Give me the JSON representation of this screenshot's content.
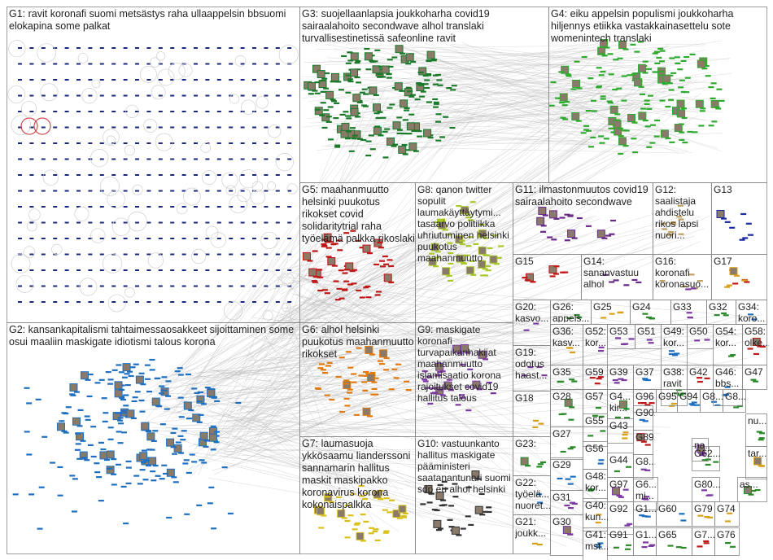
{
  "colors": {
    "frame": "#888888",
    "edge": "#b4b4b4",
    "g1": "#1a2a7a",
    "g2": "#1e6fc0",
    "g3": "#1a7a2a",
    "g4": "#2eaa2e",
    "g5": "#c01818",
    "g6": "#e07a10",
    "g7": "#d8c018",
    "g8": "#a8c82a",
    "g9": "#7a3aa0",
    "g10": "#333333",
    "g11": "#6a2a8a",
    "g12": "#c0a060",
    "g13": "#1a2aa0",
    "misc": "#4a8a4a"
  },
  "groups": [
    {
      "id": "G1",
      "label": "G1: ravit koronafi suomi metsästys raha ullaappelsin bbsuomi elokapina some palkat"
    },
    {
      "id": "G2",
      "label": "G2: kansankapitalismi tahtaimessaosakkeet sijoittaminen some osui maaliin maskigate idiotismi talous korona"
    },
    {
      "id": "G3",
      "label": "G3: suojellaanlapsia joukkoharha covid19 sairaalahoito secondwave alhol translaki turvallisestinetissä safeonline ravit"
    },
    {
      "id": "G4",
      "label": "G4: eiku appelsin populismi joukkoharha hiljennys etiikka vastakkainasettelu sote womenintech translaki"
    },
    {
      "id": "G5",
      "label": "G5: maahanmuutto helsinki puukotus rikokset covid solidaritytrial raha työelämä palkka rikoslaki"
    },
    {
      "id": "G8",
      "label": "G8: qanon twitter sopulit laumakäyttäytymi... tasaarvo politiikka uhriutuminen helsinki puukotus maahanmuutto"
    },
    {
      "id": "G11",
      "label": "G11: ilmastonmuutos covid19 sairaalahoito secondwave"
    },
    {
      "id": "G12",
      "label": "G12: saalistaja ahdistelu rikos lapsi nuori..."
    },
    {
      "id": "G13",
      "label": "G13"
    },
    {
      "id": "G15",
      "label": "G15"
    },
    {
      "id": "G14",
      "label": "G14: sananvastuu alhol"
    },
    {
      "id": "G16",
      "label": "G16: koronafi koronasuo..."
    },
    {
      "id": "G17",
      "label": "G17"
    },
    {
      "id": "G6",
      "label": "G6: alhol helsinki puukotus maahanmuutto rikokset"
    },
    {
      "id": "G9",
      "label": "G9: maskigate koronafi turvapaikanhakijat maahanmuutto islamisaatio korona rajoitukset covid19 hallitus talous"
    },
    {
      "id": "G20",
      "label": "G20: kasvo..."
    },
    {
      "id": "G26",
      "label": "G26: appels..."
    },
    {
      "id": "G25",
      "label": "G25"
    },
    {
      "id": "G24",
      "label": "G24"
    },
    {
      "id": "G33",
      "label": "G33"
    },
    {
      "id": "G32",
      "label": "G32"
    },
    {
      "id": "G34",
      "label": "G34: koro..."
    },
    {
      "id": "G19",
      "label": "G19: odotus haast..."
    },
    {
      "id": "G36",
      "label": "G36: kasv..."
    },
    {
      "id": "G52",
      "label": "G52: kor..."
    },
    {
      "id": "G53",
      "label": "G53"
    },
    {
      "id": "G51",
      "label": "G51"
    },
    {
      "id": "G49",
      "label": "G49: kor..."
    },
    {
      "id": "G50",
      "label": "G50"
    },
    {
      "id": "G54",
      "label": "G54: kor..."
    },
    {
      "id": "G58",
      "label": "G58: olke..."
    },
    {
      "id": "G35",
      "label": "G35"
    },
    {
      "id": "G59",
      "label": "G59"
    },
    {
      "id": "G39",
      "label": "G39"
    },
    {
      "id": "G37",
      "label": "G37"
    },
    {
      "id": "G38",
      "label": "G38: ravit"
    },
    {
      "id": "G42",
      "label": "G42"
    },
    {
      "id": "G46",
      "label": "G46: bbs..."
    },
    {
      "id": "G47",
      "label": "G47"
    },
    {
      "id": "G18",
      "label": "G18"
    },
    {
      "id": "G28",
      "label": "G28"
    },
    {
      "id": "G57",
      "label": "G57"
    },
    {
      "id": "G4x",
      "label": "G4... kir..."
    },
    {
      "id": "G96",
      "label": "G96"
    },
    {
      "id": "G95",
      "label": "G95"
    },
    {
      "id": "G94",
      "label": "G94"
    },
    {
      "id": "G8a",
      "label": "G8..."
    },
    {
      "id": "G8b",
      "label": "G8..."
    },
    {
      "id": "G7",
      "label": "G7: laumasuoja ykkösaamu lianderssoni sannamarin hallitus maskit maskipakko koronavirus korona kokonaispalkka"
    },
    {
      "id": "G10",
      "label": "G10: vastuunkanto hallitus maskigate pääministeri saatanantunari suomi sdp eu alhol helsinki"
    },
    {
      "id": "G23",
      "label": "G23:"
    },
    {
      "id": "G27",
      "label": "G27"
    },
    {
      "id": "G55",
      "label": "G55"
    },
    {
      "id": "G43",
      "label": "G43"
    },
    {
      "id": "G90",
      "label": "G90..."
    },
    {
      "id": "G89",
      "label": "G89..."
    },
    {
      "id": "G56",
      "label": "G56"
    },
    {
      "id": "G44",
      "label": "G44"
    },
    {
      "id": "G8c",
      "label": "G8..."
    },
    {
      "id": "G62",
      "label": "G62..."
    },
    {
      "id": "G29",
      "label": "G29"
    },
    {
      "id": "G48",
      "label": "G48: kor..."
    },
    {
      "id": "G97",
      "label": "G97"
    },
    {
      "id": "G6x",
      "label": "G6... mi..."
    },
    {
      "id": "G80",
      "label": "G80..."
    },
    {
      "id": "G22",
      "label": "G22: työelä... nuoret..."
    },
    {
      "id": "G31",
      "label": "G31"
    },
    {
      "id": "G9x",
      "label": "G9..."
    },
    {
      "id": "G40",
      "label": "G40: kun..."
    },
    {
      "id": "G92",
      "label": "G92"
    },
    {
      "id": "G1x",
      "label": "G1..."
    },
    {
      "id": "G60",
      "label": "G60"
    },
    {
      "id": "G79",
      "label": "G79"
    },
    {
      "id": "G74",
      "label": "G74"
    },
    {
      "id": "G21",
      "label": "G21: joukk..."
    },
    {
      "id": "G30",
      "label": "G30"
    },
    {
      "id": "G41",
      "label": "G41: mst..."
    },
    {
      "id": "G91",
      "label": "G91"
    },
    {
      "id": "G1y",
      "label": "G1..."
    },
    {
      "id": "G65",
      "label": "G65"
    },
    {
      "id": "G7x",
      "label": "G7..."
    },
    {
      "id": "G76",
      "label": "G76"
    },
    {
      "id": "Gna",
      "label": "na..."
    },
    {
      "id": "Gnu",
      "label": "nu..."
    },
    {
      "id": "Gtar",
      "label": "tar..."
    },
    {
      "id": "Gas",
      "label": "as..."
    }
  ]
}
